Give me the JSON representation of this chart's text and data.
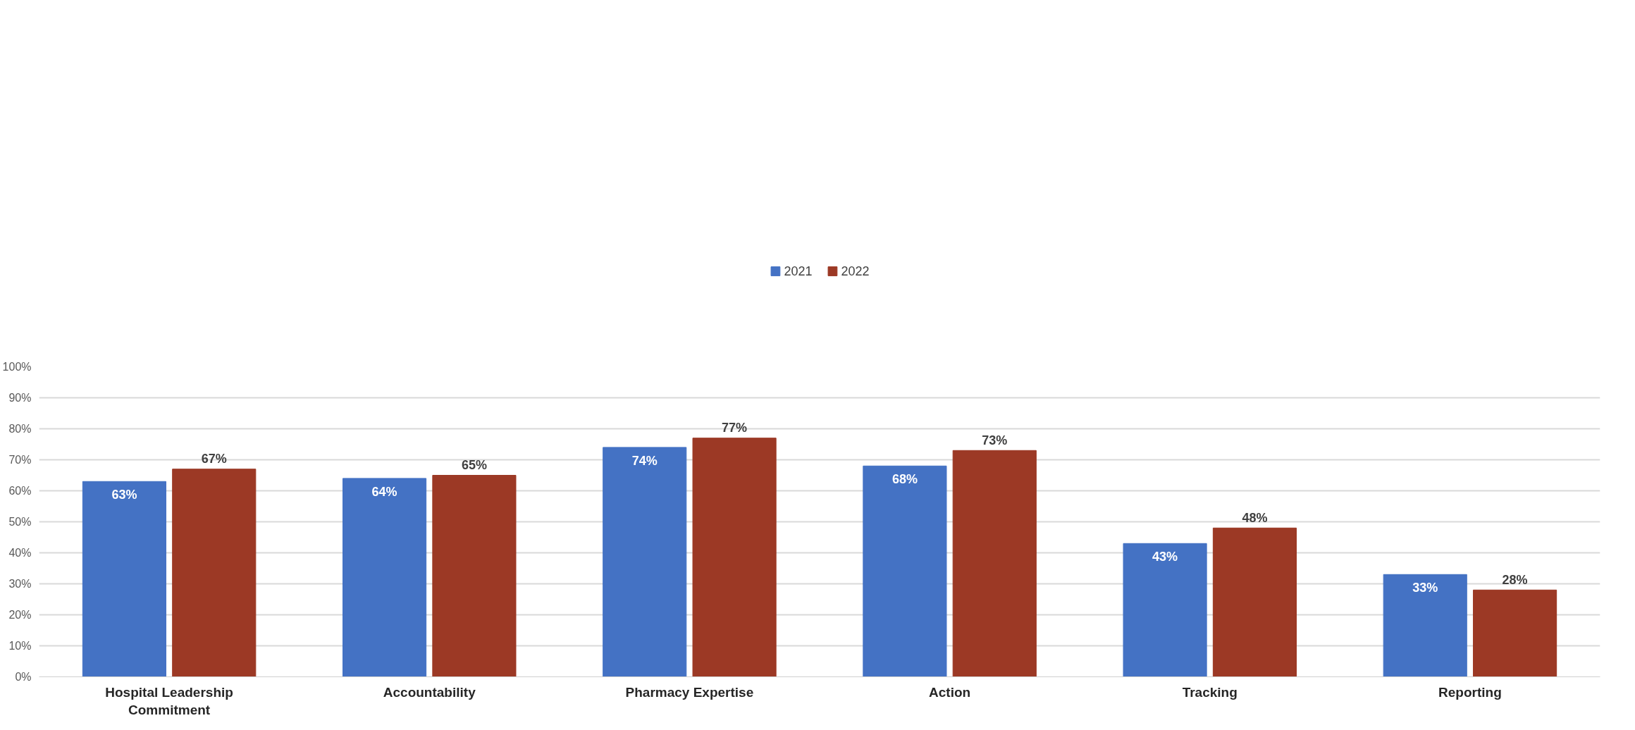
{
  "chart_data": {
    "type": "bar",
    "categories": [
      "Hospital Leadership Commitment",
      "Accountability",
      "Pharmacy Expertise",
      "Action",
      "Tracking",
      "Reporting"
    ],
    "series": [
      {
        "name": "2021",
        "color": "#4472c4",
        "values": [
          63,
          64,
          74,
          68,
          43,
          33
        ],
        "value_labels": [
          "63%",
          "64%",
          "74%",
          "68%",
          "43%",
          "33%"
        ]
      },
      {
        "name": "2022",
        "color": "#9c3925",
        "values": [
          67,
          65,
          77,
          73,
          48,
          28
        ],
        "value_labels": [
          "67%",
          "65%",
          "77%",
          "73%",
          "48%",
          "28%"
        ]
      }
    ],
    "ylim": [
      0,
      100
    ],
    "yticks": [
      {
        "value": 0,
        "label": "0%"
      },
      {
        "value": 10,
        "label": "10%"
      },
      {
        "value": 20,
        "label": "20%"
      },
      {
        "value": 30,
        "label": "30%"
      },
      {
        "value": 40,
        "label": "40%"
      },
      {
        "value": 50,
        "label": "50%"
      },
      {
        "value": 60,
        "label": "60%"
      },
      {
        "value": 70,
        "label": "70%"
      },
      {
        "value": 80,
        "label": "80%"
      },
      {
        "value": 90,
        "label": "90%"
      },
      {
        "value": 100,
        "label": "100%"
      }
    ],
    "grid": "y",
    "legend": "top"
  }
}
